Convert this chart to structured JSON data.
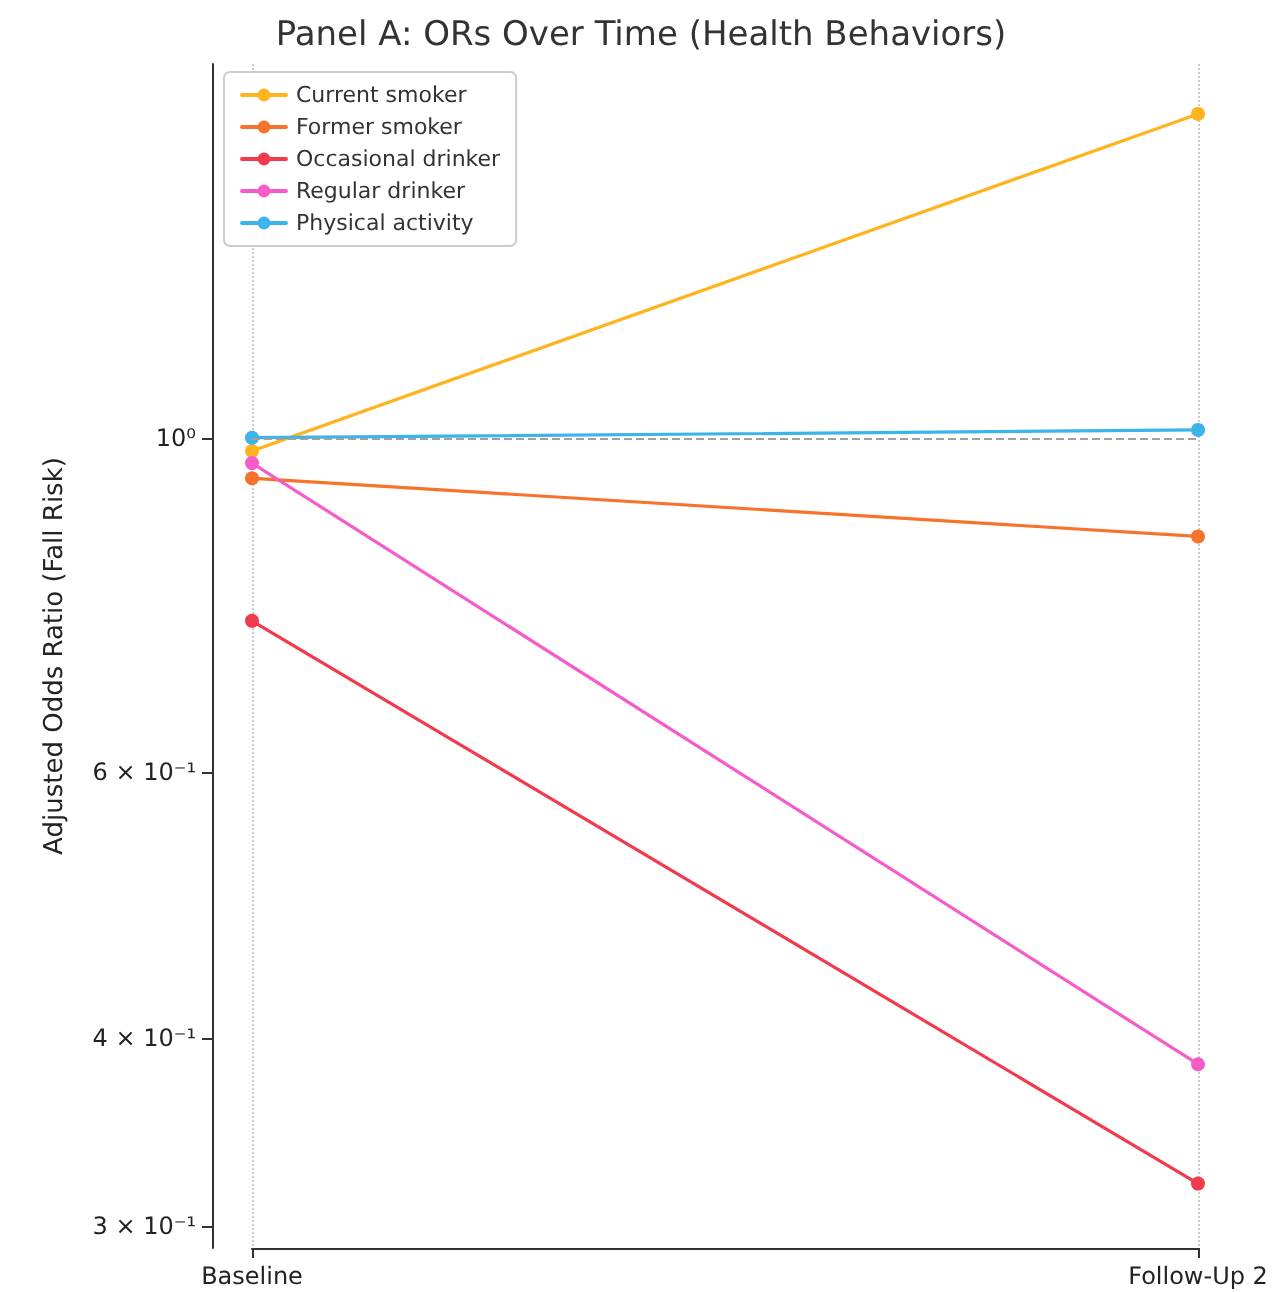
{
  "chart_data": {
    "type": "line",
    "title": "Panel A: ORs Over Time (Health Behaviors)",
    "ylabel": "Adjusted Odds Ratio (Fall Risk)",
    "categories": [
      "Baseline",
      "Follow-Up 2"
    ],
    "series": [
      {
        "name": "Current smoker",
        "color": "#ffb41f",
        "values": [
          0.98,
          1.64
        ]
      },
      {
        "name": "Former smoker",
        "color": "#f7722a",
        "values": [
          0.94,
          0.86
        ]
      },
      {
        "name": "Occasional drinker",
        "color": "#f23a4e",
        "values": [
          0.756,
          0.32
        ]
      },
      {
        "name": "Regular drinker",
        "color": "#f65cc7",
        "values": [
          0.962,
          0.384
        ]
      },
      {
        "name": "Physical activity",
        "color": "#3bb4ea",
        "values": [
          1.0,
          1.012
        ]
      }
    ],
    "log": "y",
    "ylim": [
      0.29,
      1.77
    ],
    "yticks": [
      {
        "value": 0.3,
        "label": "3 × 10⁻¹"
      },
      {
        "value": 0.4,
        "label": "4 × 10⁻¹"
      },
      {
        "value": 0.6,
        "label": "6 × 10⁻¹"
      },
      {
        "value": 1,
        "label": "10⁰"
      }
    ],
    "ref_lines": [
      {
        "axis": "y",
        "value": 1,
        "label": null,
        "color": "#a0a0a0",
        "line_style": "dashed"
      }
    ],
    "grid": "x",
    "legend": "top left",
    "marker": "circle",
    "line_style": "solid"
  }
}
